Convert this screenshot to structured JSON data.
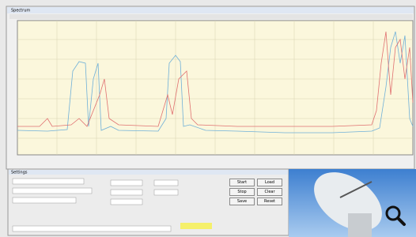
{
  "window": {
    "title": "Spectrum"
  },
  "panel": {
    "title": "Settings",
    "buttons": [
      "Start",
      "Stop",
      "Save",
      "Load",
      "Clear",
      "Reset"
    ]
  }
}
